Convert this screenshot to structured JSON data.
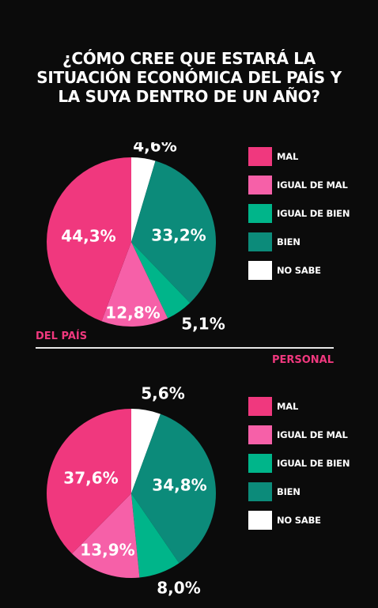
{
  "title": {
    "line1": "¿CÓMO CREE QUE ESTARÁ LA",
    "line2": "SITUACIÓN ECONÓMICA DEL PAÍS Y",
    "line3": "LA SUYA DENTRO DE UN AÑO?"
  },
  "colors": {
    "mal": "#f0387e",
    "igual_de_mal": "#f660a8",
    "igual_de_bien": "#00b58a",
    "bien": "#0c8b7a",
    "no_sabe": "#ffffff",
    "accent": "#f0387e",
    "background": "#0b0b0b"
  },
  "chart_data": [
    {
      "type": "pie",
      "section_label": "DEL PAÍS",
      "categories": [
        "MAL",
        "IGUAL DE MAL",
        "IGUAL DE BIEN",
        "BIEN",
        "NO SABE"
      ],
      "values": [
        44.3,
        12.8,
        5.1,
        33.2,
        4.6
      ],
      "value_labels": [
        "44,3%",
        "12,8%",
        "5,1%",
        "33,2%",
        "4,6%"
      ],
      "legend_placement": "right"
    },
    {
      "type": "pie",
      "section_label": "PERSONAL",
      "categories": [
        "MAL",
        "IGUAL DE MAL",
        "IGUAL DE BIEN",
        "BIEN",
        "NO SABE"
      ],
      "values": [
        37.6,
        13.9,
        8.0,
        34.8,
        5.6
      ],
      "value_labels": [
        "37,6%",
        "13,9%",
        "8,0%",
        "34,8%",
        "5,6%"
      ],
      "legend_placement": "right"
    }
  ]
}
